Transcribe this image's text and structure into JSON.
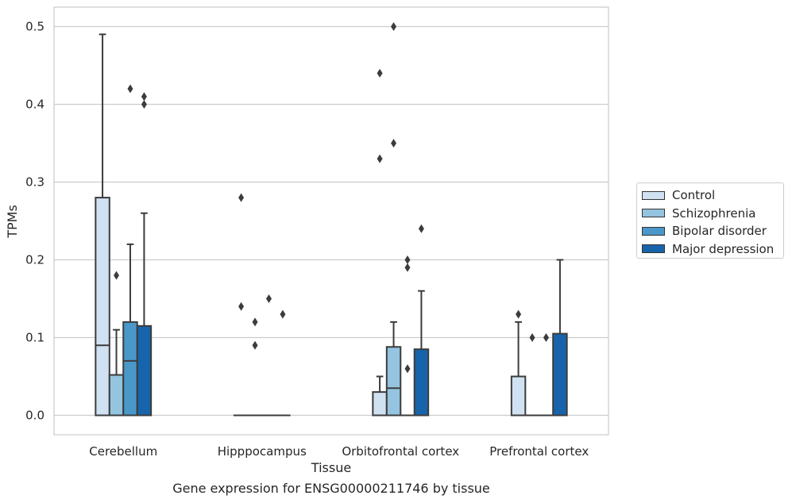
{
  "chart_data": {
    "type": "box",
    "ylabel": "TPMs",
    "xlabel": "Tissue",
    "caption": "Gene expression for ENSG00000211746 by tissue",
    "ylim": [
      -0.025,
      0.525
    ],
    "yticks": [
      "0.0",
      "0.1",
      "0.2",
      "0.3",
      "0.4",
      "0.5"
    ],
    "grid": "horizontal",
    "legend_placement": "right",
    "categories": [
      "Cerebellum",
      "Hipppocampus",
      "Orbitofrontal cortex",
      "Prefrontal cortex"
    ],
    "series": [
      {
        "name": "Control",
        "color": "#d0e1f2",
        "boxes": [
          {
            "q1": 0.0,
            "median": 0.09,
            "q3": 0.28,
            "whisker_low": 0.0,
            "whisker_high": 0.49,
            "outliers": []
          },
          {
            "q1": 0.0,
            "median": 0.0,
            "q3": 0.0,
            "whisker_low": 0.0,
            "whisker_high": 0.0,
            "outliers": [
              0.28,
              0.14
            ]
          },
          {
            "q1": 0.0,
            "median": 0.0,
            "q3": 0.03,
            "whisker_low": 0.0,
            "whisker_high": 0.05,
            "outliers": [
              0.44,
              0.33
            ]
          },
          {
            "q1": 0.0,
            "median": 0.0,
            "q3": 0.05,
            "whisker_low": 0.0,
            "whisker_high": 0.12,
            "outliers": [
              0.13
            ]
          }
        ]
      },
      {
        "name": "Schizophrenia",
        "color": "#94c4df",
        "boxes": [
          {
            "q1": 0.0,
            "median": 0.0,
            "q3": 0.052,
            "whisker_low": 0.0,
            "whisker_high": 0.11,
            "outliers": [
              0.18
            ]
          },
          {
            "q1": 0.0,
            "median": 0.0,
            "q3": 0.0,
            "whisker_low": 0.0,
            "whisker_high": 0.0,
            "outliers": [
              0.12,
              0.09
            ]
          },
          {
            "q1": 0.0,
            "median": 0.035,
            "q3": 0.088,
            "whisker_low": 0.0,
            "whisker_high": 0.12,
            "outliers": [
              0.5,
              0.35
            ]
          },
          {
            "q1": 0.0,
            "median": 0.0,
            "q3": 0.0,
            "whisker_low": 0.0,
            "whisker_high": 0.0,
            "outliers": [
              0.1
            ]
          }
        ]
      },
      {
        "name": "Bipolar disorder",
        "color": "#4a98c9",
        "boxes": [
          {
            "q1": 0.0,
            "median": 0.07,
            "q3": 0.12,
            "whisker_low": 0.0,
            "whisker_high": 0.22,
            "outliers": [
              0.42
            ]
          },
          {
            "q1": 0.0,
            "median": 0.0,
            "q3": 0.0,
            "whisker_low": 0.0,
            "whisker_high": 0.0,
            "outliers": [
              0.15
            ]
          },
          {
            "q1": 0.0,
            "median": 0.0,
            "q3": 0.0,
            "whisker_low": 0.0,
            "whisker_high": 0.0,
            "outliers": [
              0.2,
              0.19,
              0.06
            ]
          },
          {
            "q1": 0.0,
            "median": 0.0,
            "q3": 0.0,
            "whisker_low": 0.0,
            "whisker_high": 0.0,
            "outliers": [
              0.1
            ]
          }
        ]
      },
      {
        "name": "Major depression",
        "color": "#1764ab",
        "boxes": [
          {
            "q1": 0.0,
            "median": 0.0,
            "q3": 0.115,
            "whisker_low": 0.0,
            "whisker_high": 0.26,
            "outliers": [
              0.41,
              0.4
            ]
          },
          {
            "q1": 0.0,
            "median": 0.0,
            "q3": 0.0,
            "whisker_low": 0.0,
            "whisker_high": 0.0,
            "outliers": [
              0.13
            ]
          },
          {
            "q1": 0.0,
            "median": 0.0,
            "q3": 0.085,
            "whisker_low": 0.0,
            "whisker_high": 0.16,
            "outliers": [
              0.24
            ]
          },
          {
            "q1": 0.0,
            "median": 0.0,
            "q3": 0.105,
            "whisker_low": 0.0,
            "whisker_high": 0.2,
            "outliers": []
          }
        ]
      }
    ]
  }
}
